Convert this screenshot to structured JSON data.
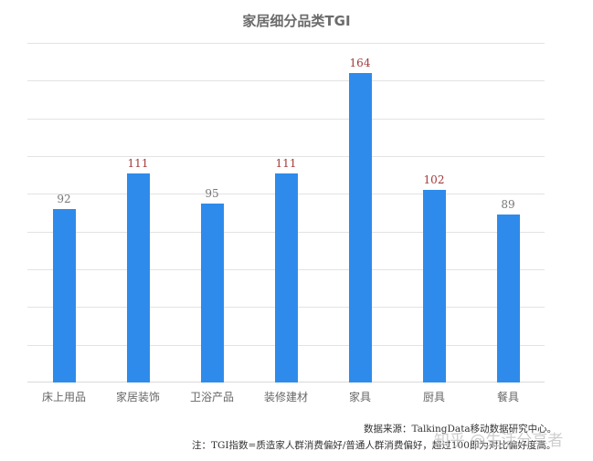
{
  "chart_data": {
    "type": "bar",
    "title": "家居细分品类TGI",
    "categories": [
      "床上用品",
      "家居装饰",
      "卫浴产品",
      "装修建材",
      "家具",
      "厨具",
      "餐具"
    ],
    "values": [
      92,
      111,
      95,
      111,
      164,
      102,
      89
    ],
    "value_label_colors": [
      "#777777",
      "#a33a3a",
      "#777777",
      "#a33a3a",
      "#a33a3a",
      "#a33a3a",
      "#777777"
    ],
    "xlabel": "",
    "ylabel": "",
    "ylim": [
      0,
      180
    ],
    "grid": true,
    "gridline_step": 20,
    "y_tick_labels_visible": false,
    "bar_color": "#2e8beb",
    "legend": null
  },
  "footer": {
    "source": "数据来源：TalkingData移动数据研究中心。",
    "note": "注：TGI指数=质造家人群消费偏好/普通人群消费偏好，超过100即为对比偏好度高。",
    "watermark": "知乎 @生活分享者"
  }
}
